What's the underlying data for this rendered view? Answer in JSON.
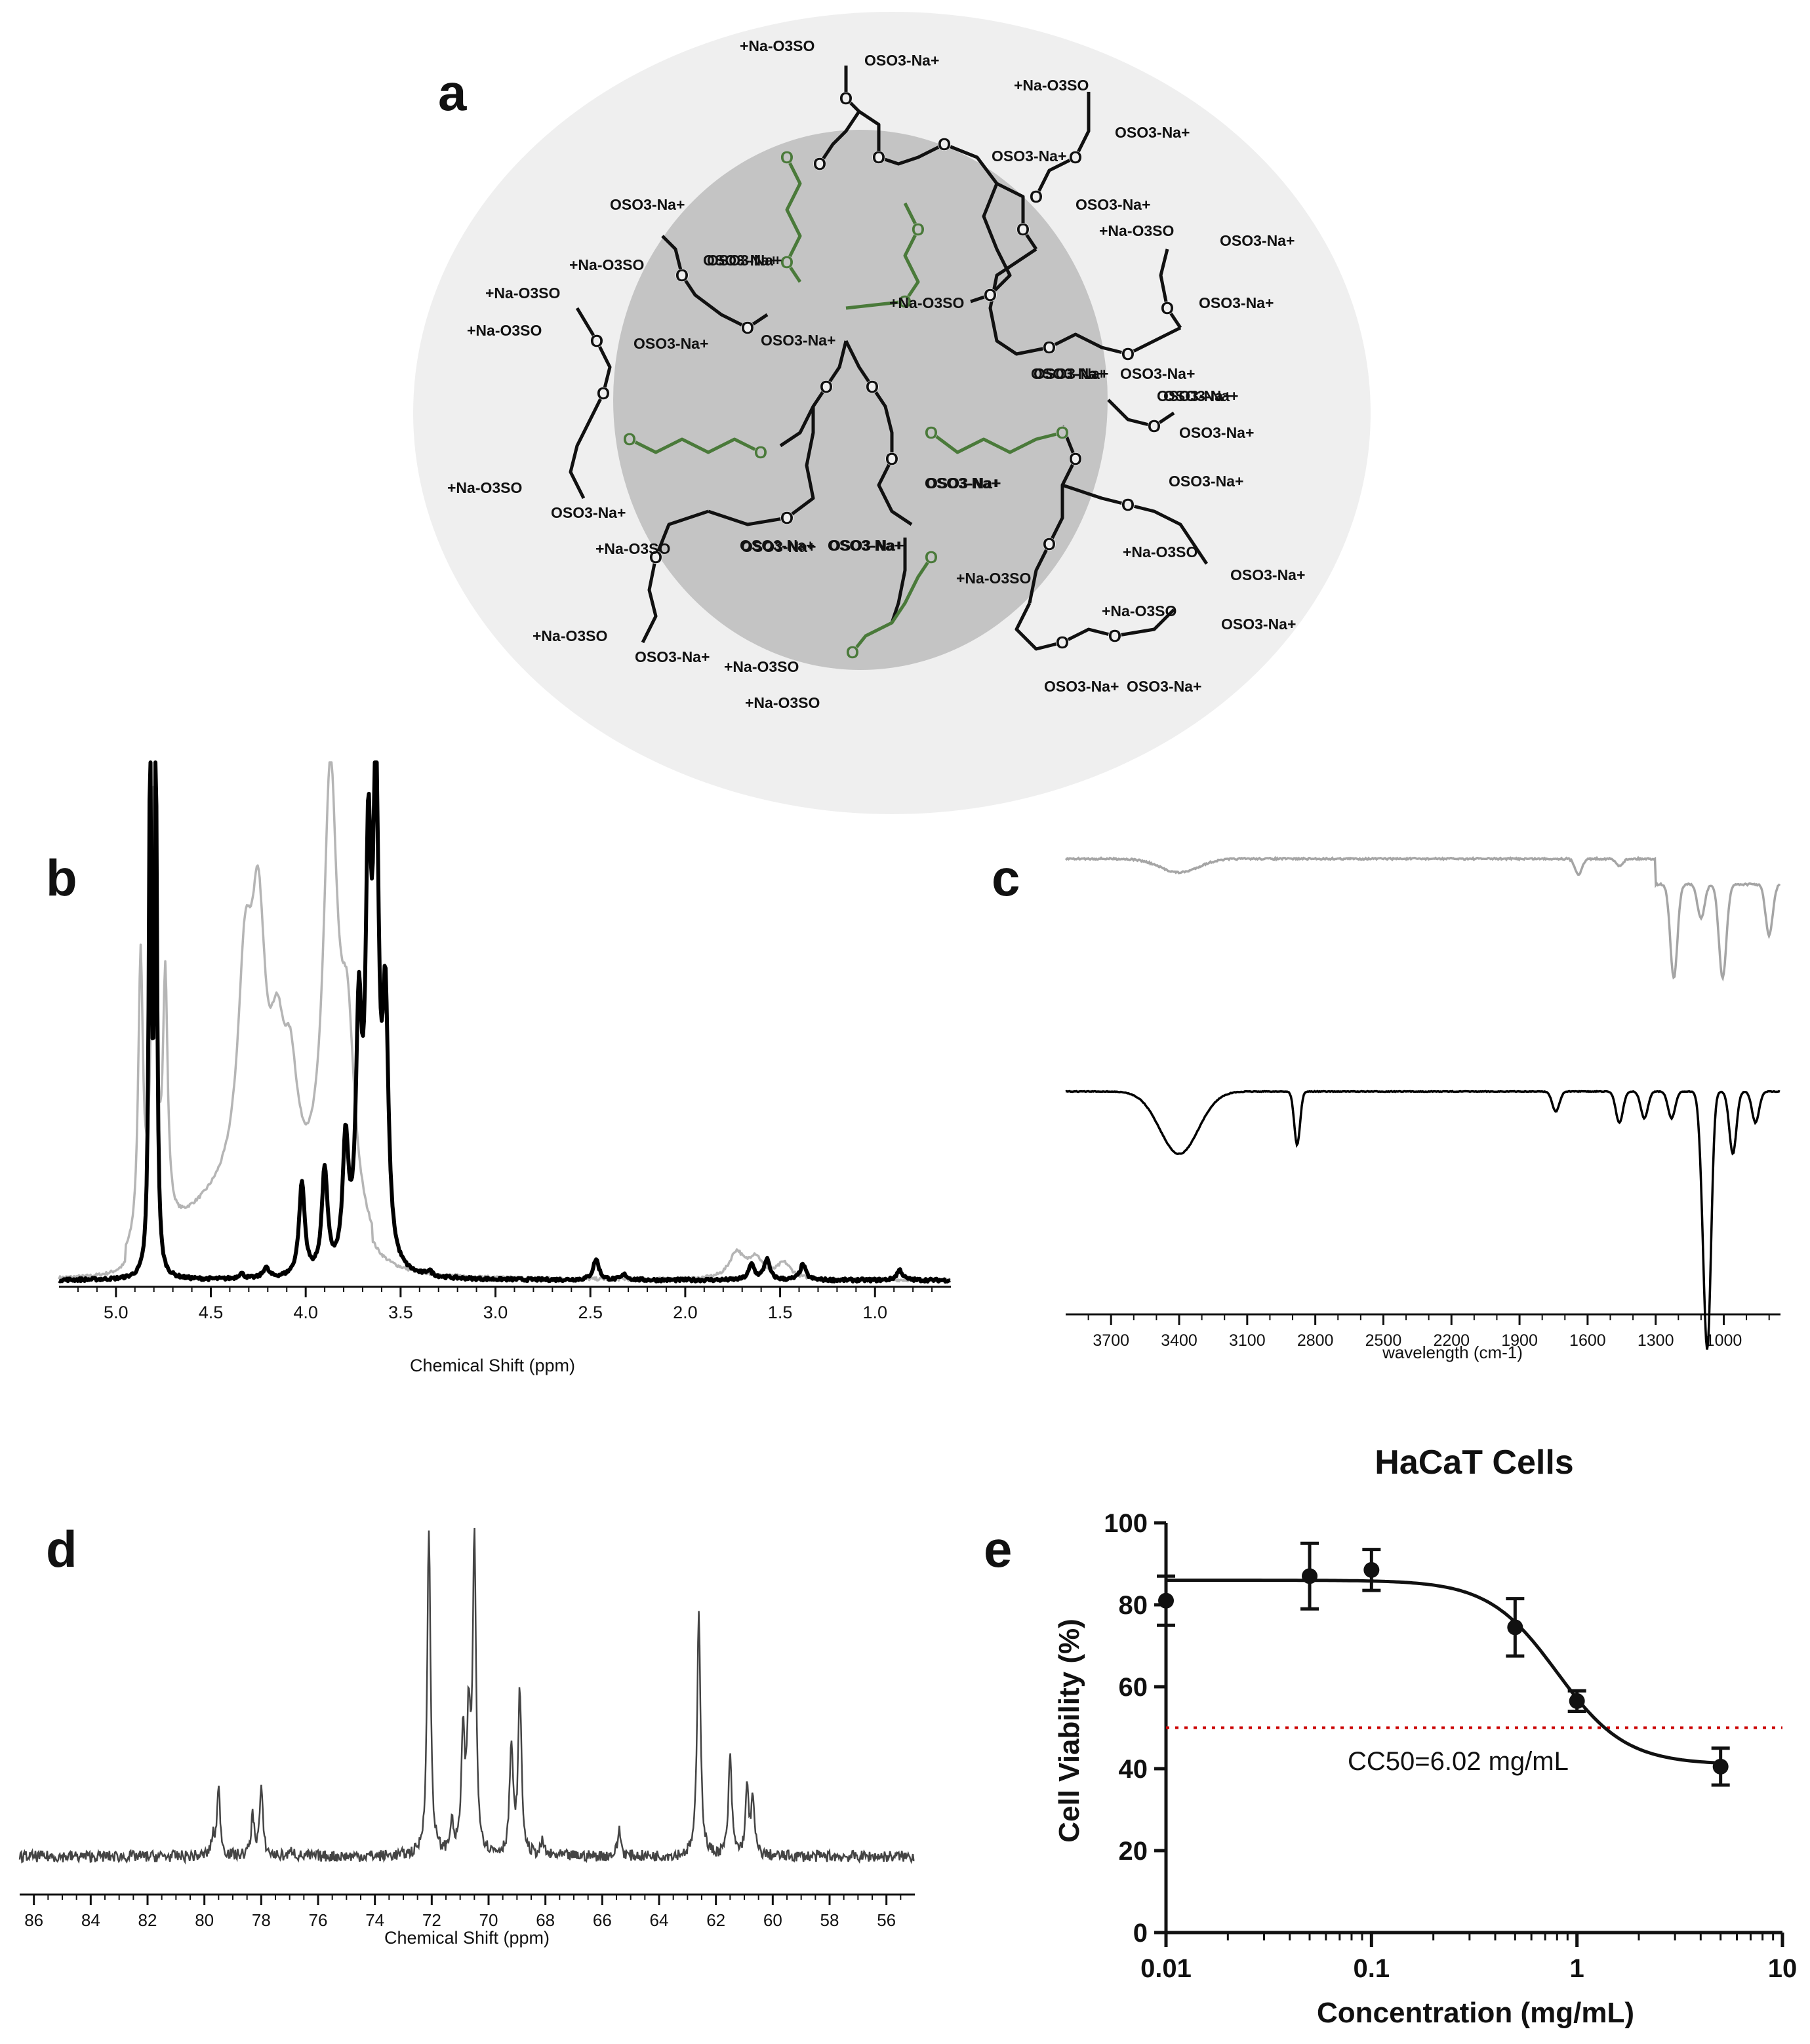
{
  "panels": {
    "a": {
      "letter": "a",
      "labels": {
        "top_left": "+Na-O3SO",
        "top_right": "OSO3-Na+",
        "tr1": "+Na-O3SO",
        "tr2": "OSO3-Na+",
        "tr3": "OSO3-Na+",
        "tr4": "OSO3-Na+",
        "tr5": "+Na-O3SO",
        "tr6": "OSO3-Na+",
        "tr7": "+Na-O3SO",
        "tr8": "OSO3-Na+",
        "tr9": "OSO3-Na+",
        "tr10": "OSO3-Na+",
        "r1": "OSO3-Na+",
        "r2": "OSO3-Na+",
        "r3": "OSO3-Na+",
        "r4": "OSO3-Na+",
        "r5": "+Na-O3SO",
        "r6": "OSO3-Na+",
        "r7": "+Na-O3SO",
        "br1": "+Na-O3SO",
        "br2": "OSO3-Na+",
        "br3": "OSO3-Na+",
        "br4": "OSO3-Na+",
        "b1": "+Na-O3SO",
        "b2": "+Na-O3SO",
        "b3": "OSO3-Na+",
        "bl1": "+Na-O3SO",
        "bl2": "OSO3-Na+",
        "bl3": "+Na-O3SO",
        "bl4": "OSO3-Na+",
        "bl5": "OSO3-Na+",
        "bl6": "OSO3-Na+",
        "l1": "+Na-O3SO",
        "l2": "+Na-O3SO",
        "l3": "OSO3-Na+",
        "l4": "OSO3-Na+",
        "l5": "+Na-O3SO",
        "l6": "OSO3-Na+",
        "l7": "OSO3-Na+",
        "l8": "+Na-O3SO",
        "l9": "OSO3-Na+",
        "l10": "OSO3-Na+",
        "c1": "OSO3-Na+",
        "c2": "OSO3-Na+",
        "c3": "OSO3-Na+"
      },
      "colors": {
        "outer": "#efefef",
        "inner": "#c4c4c4",
        "linker": "#4a7a3a",
        "bond": "#111111"
      }
    },
    "b": {
      "letter": "b",
      "xlabel": "Chemical Shift (ppm)"
    },
    "c": {
      "letter": "c",
      "xlabel": "wavelength (cm-1)"
    },
    "d": {
      "letter": "d",
      "xlabel": "Chemical Shift (ppm)"
    },
    "e": {
      "letter": "e",
      "title": "HaCaT Cells",
      "xlabel": "Concentration (mg/mL)",
      "ylabel": "Cell Viability (%)",
      "annotation": "CC50=6.02 mg/mL"
    }
  },
  "chart_data": [
    {
      "panel": "b",
      "type": "line",
      "xlabel": "Chemical Shift (ppm)",
      "x_ticks": [
        "5.0",
        "4.5",
        "4.0",
        "3.5",
        "3.0",
        "2.5",
        "2.0",
        "1.5",
        "1.0"
      ],
      "xlim": [
        5.3,
        0.6
      ],
      "x_reversed": true,
      "series": [
        {
          "color": "#b5b5b5",
          "peaks": [
            [
              4.87,
              0.55
            ],
            [
              4.8,
              0.85
            ],
            [
              4.74,
              0.47
            ],
            [
              4.32,
              0.38
            ],
            [
              4.25,
              0.46
            ],
            [
              4.15,
              0.22
            ],
            [
              4.08,
              0.2
            ],
            [
              3.87,
              0.84
            ],
            [
              3.78,
              0.35
            ],
            [
              1.73,
              0.05
            ],
            [
              1.63,
              0.04
            ],
            [
              1.48,
              0.03
            ]
          ]
        },
        {
          "color": "#000000",
          "peaks": [
            [
              4.82,
              1.0
            ],
            [
              4.79,
              1.0
            ],
            [
              4.34,
              0.01
            ],
            [
              4.21,
              0.02
            ],
            [
              4.02,
              0.18
            ],
            [
              3.9,
              0.2
            ],
            [
              3.79,
              0.24
            ],
            [
              3.72,
              0.45
            ],
            [
              3.67,
              0.72
            ],
            [
              3.63,
              0.88
            ],
            [
              3.58,
              0.47
            ],
            [
              3.35,
              0.01
            ],
            [
              2.47,
              0.04
            ],
            [
              2.32,
              0.01
            ],
            [
              1.65,
              0.03
            ],
            [
              1.57,
              0.04
            ],
            [
              1.38,
              0.03
            ],
            [
              0.87,
              0.02
            ]
          ]
        }
      ]
    },
    {
      "panel": "c",
      "type": "line",
      "xlabel": "wavelength (cm-1)",
      "x_ticks": [
        "3700",
        "3400",
        "3100",
        "2800",
        "2500",
        "2200",
        "1900",
        "1600",
        "1300",
        "1000"
      ],
      "xlim": [
        3900,
        750
      ],
      "x_reversed": true,
      "series": [
        {
          "color": "#a5a5a5",
          "bands": [
            [
              3400,
              0.08
            ],
            [
              1640,
              0.09
            ],
            [
              1460,
              0.04
            ],
            [
              1220,
              0.55
            ],
            [
              1100,
              0.2
            ],
            [
              1010,
              0.28
            ],
            [
              1000,
              0.3
            ],
            [
              800,
              0.3
            ]
          ]
        },
        {
          "color": "#000000",
          "bands": [
            [
              3400,
              0.28
            ],
            [
              2880,
              0.24
            ],
            [
              1740,
              0.09
            ],
            [
              1460,
              0.14
            ],
            [
              1350,
              0.12
            ],
            [
              1230,
              0.12
            ],
            [
              1090,
              0.32
            ],
            [
              1070,
              1.0
            ],
            [
              960,
              0.28
            ],
            [
              860,
              0.14
            ]
          ]
        }
      ]
    },
    {
      "panel": "d",
      "type": "line",
      "xlabel": "Chemical Shift (ppm)",
      "x_ticks": [
        "86",
        "84",
        "82",
        "80",
        "78",
        "76",
        "74",
        "72",
        "70",
        "68",
        "66",
        "64",
        "62",
        "60",
        "58",
        "56"
      ],
      "xlim": [
        86.5,
        55.0
      ],
      "x_reversed": true,
      "series": [
        {
          "color": "#444444",
          "peaks": [
            [
              79.7,
              0.05
            ],
            [
              79.5,
              0.2
            ],
            [
              78.3,
              0.12
            ],
            [
              78.0,
              0.2
            ],
            [
              76.9,
              0.02
            ],
            [
              72.1,
              1.0
            ],
            [
              71.3,
              0.09
            ],
            [
              70.9,
              0.35
            ],
            [
              70.7,
              0.38
            ],
            [
              70.5,
              0.95
            ],
            [
              69.2,
              0.33
            ],
            [
              68.9,
              0.5
            ],
            [
              68.1,
              0.04
            ],
            [
              65.4,
              0.08
            ],
            [
              62.6,
              0.75
            ],
            [
              61.5,
              0.3
            ],
            [
              60.9,
              0.2
            ],
            [
              60.7,
              0.16
            ]
          ]
        }
      ]
    },
    {
      "panel": "e",
      "type": "scatter",
      "title": "HaCaT Cells",
      "xlabel": "Concentration (mg/mL)",
      "ylabel": "Cell Viability (%)",
      "x_scale": "log",
      "xlim": [
        0.01,
        10
      ],
      "ylim": [
        0,
        100
      ],
      "x_ticks": [
        "0.01",
        "0.1",
        "1",
        "10"
      ],
      "y_ticks": [
        "0",
        "20",
        "40",
        "60",
        "80",
        "100"
      ],
      "points": [
        {
          "x": 0.01,
          "y": 81,
          "err": 6
        },
        {
          "x": 0.05,
          "y": 87,
          "err": 8
        },
        {
          "x": 0.1,
          "y": 88.5,
          "err": 5
        },
        {
          "x": 0.5,
          "y": 74.5,
          "err": 7
        },
        {
          "x": 1.0,
          "y": 56.5,
          "err": 2.5
        },
        {
          "x": 5.0,
          "y": 40.5,
          "err": 4.5
        }
      ],
      "fit": {
        "top": 86,
        "bottom": 41,
        "ec50": 0.8,
        "hill": 2.6
      },
      "reference_line": {
        "y": 50,
        "color": "#cc0000"
      },
      "annotation": "CC50=6.02 mg/mL"
    }
  ]
}
